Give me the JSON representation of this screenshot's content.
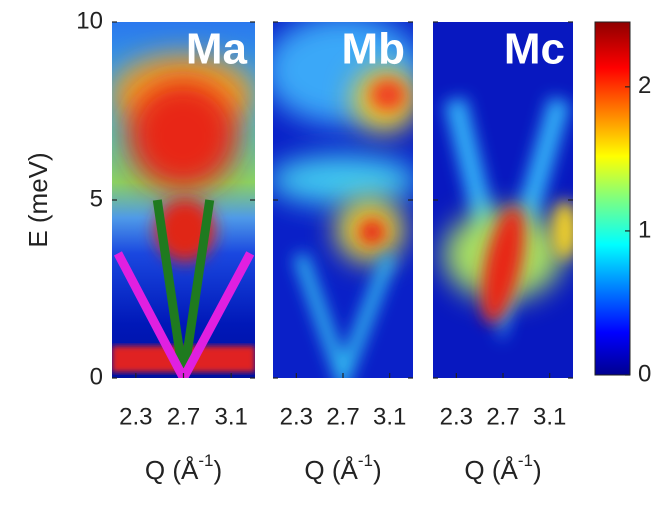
{
  "chart_data": {
    "type": "heatmap",
    "ylabel": "E (meV)",
    "ylim": [
      0,
      10
    ],
    "yticks": [
      0,
      5,
      10
    ],
    "xlim": [
      2.1,
      3.3
    ],
    "xticks": [
      2.3,
      2.7,
      3.1
    ],
    "xlabel": {
      "base": "Q (Å",
      "exponent": "-1",
      "close": ")"
    },
    "panels": [
      {
        "title": "Ma",
        "lines": [
          {
            "color": "#1f7a1f",
            "x": [
              2.48,
              2.7,
              2.92
            ],
            "y": [
              5,
              0,
              5
            ]
          },
          {
            "color": "#e020e0",
            "x": [
              2.15,
              2.7,
              3.26
            ],
            "y": [
              3.5,
              0,
              3.5
            ]
          }
        ]
      },
      {
        "title": "Mb"
      },
      {
        "title": "Mc"
      }
    ],
    "colorbar": {
      "clim": [
        0,
        2.45
      ],
      "ticks": [
        0,
        1,
        2
      ]
    }
  }
}
